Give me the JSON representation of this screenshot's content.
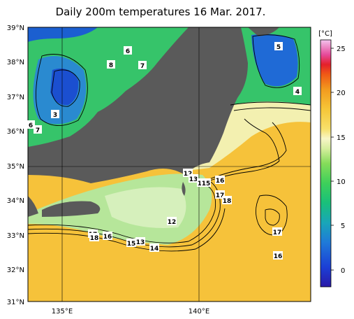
{
  "title": "Daily 200m temperatures 16 Mar. 2017.",
  "unit": "[°C]",
  "lat_labels": [
    "39°N",
    "38°N",
    "37°N",
    "36°N",
    "35°N",
    "34°N",
    "33°N",
    "32°N",
    "31°N"
  ],
  "lon_labels": [
    "135°E",
    "140°E"
  ],
  "colorbar_ticks": [
    "25",
    "20",
    "15",
    "10",
    "5",
    "0"
  ],
  "contour_labels": [
    "6",
    "8",
    "7",
    "3",
    "6",
    "7",
    "5",
    "4",
    "12",
    "13",
    "14",
    "15",
    "16",
    "17",
    "18",
    "12",
    "17",
    "18",
    "16",
    "15",
    "13",
    "14",
    "17",
    "16"
  ]
}
